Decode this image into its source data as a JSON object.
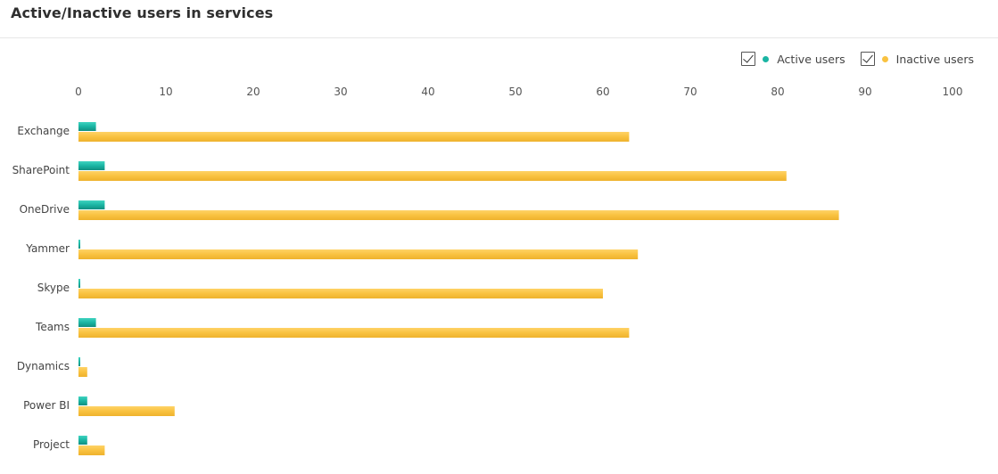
{
  "header": {
    "title": "Active/Inactive users in services"
  },
  "legend": {
    "items": [
      {
        "label": "Active users",
        "color": "#1ab5a3",
        "checked": true
      },
      {
        "label": "Inactive users",
        "color": "#f9c240",
        "checked": true
      }
    ],
    "placement": "top-right"
  },
  "chart_data": {
    "type": "bar",
    "orientation": "horizontal",
    "categories": [
      "Exchange",
      "SharePoint",
      "OneDrive",
      "Yammer",
      "Skype",
      "Teams",
      "Dynamics",
      "Power BI",
      "Project"
    ],
    "series": [
      {
        "name": "Active users",
        "color": "#1ab5a3",
        "values": [
          2,
          3,
          3,
          0.2,
          0.2,
          2,
          0.2,
          1,
          1
        ]
      },
      {
        "name": "Inactive users",
        "color": "#f9c240",
        "values": [
          63,
          81,
          87,
          64,
          60,
          63,
          1,
          11,
          3
        ]
      }
    ],
    "xlim": [
      0,
      100
    ],
    "xticks": [
      0,
      10,
      20,
      30,
      40,
      50,
      60,
      70,
      80,
      90,
      100
    ],
    "tick_labels": [
      "0",
      "10",
      "20",
      "30",
      "40",
      "50",
      "60",
      "70",
      "80",
      "90",
      "100"
    ],
    "axis_position": "top",
    "grid": false
  }
}
